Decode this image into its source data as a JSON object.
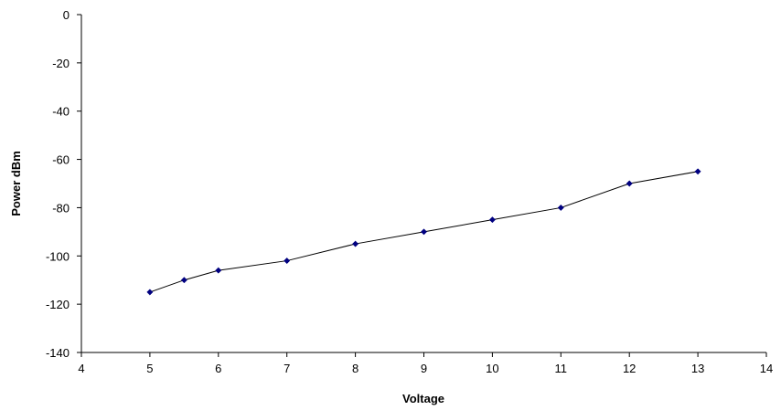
{
  "chart_data": {
    "type": "scatter",
    "title": "",
    "xlabel": "Voltage",
    "ylabel": "Power dBm",
    "xlim": [
      4,
      14
    ],
    "ylim": [
      -140,
      0
    ],
    "x_ticks": [
      4,
      5,
      6,
      7,
      8,
      9,
      10,
      11,
      12,
      13,
      14
    ],
    "y_ticks": [
      0,
      -20,
      -40,
      -60,
      -80,
      -100,
      -120,
      -140
    ],
    "x_tick_labels": [
      "4",
      "5",
      "6",
      "7",
      "8",
      "9",
      "10",
      "11",
      "12",
      "13",
      "14"
    ],
    "y_tick_labels": [
      "0",
      "-20",
      "-40",
      "-60",
      "-80",
      "-100",
      "-120",
      "-140"
    ],
    "grid": false,
    "legend": "none",
    "series": [
      {
        "x": [
          5,
          5.5,
          6,
          7,
          8,
          9,
          10,
          11,
          12,
          13
        ],
        "y": [
          -115,
          -110,
          -106,
          -102,
          -95,
          -90,
          -85,
          -80,
          -70,
          -65
        ],
        "line": true,
        "marker": "diamond",
        "color": "#000080"
      }
    ]
  }
}
